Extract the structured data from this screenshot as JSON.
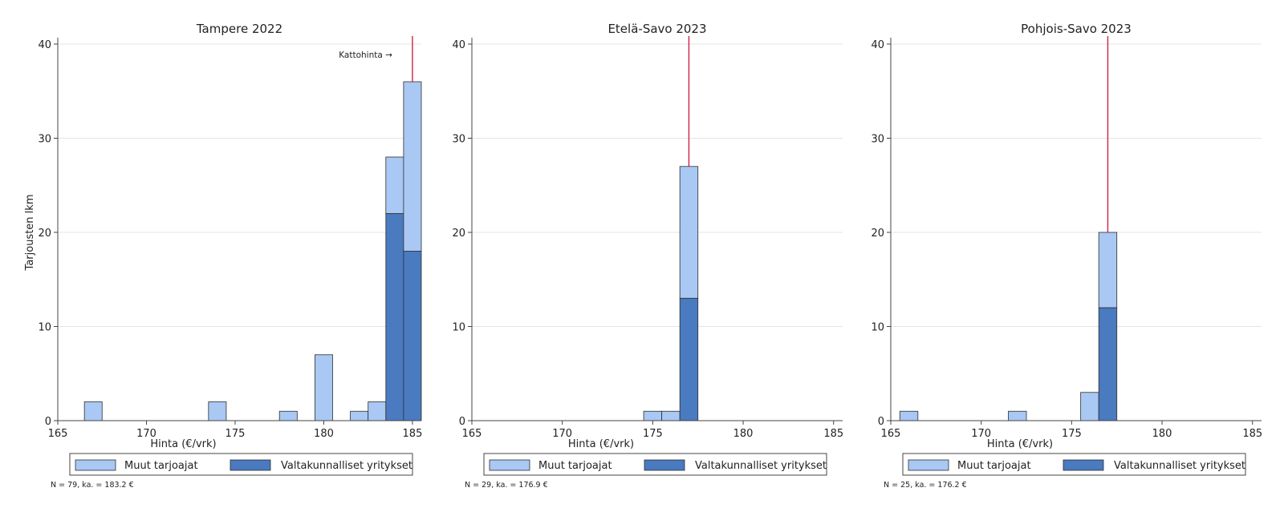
{
  "colors": {
    "muut": "#a9c8f3",
    "valtakunnalliset": "#4a7abf",
    "bar_stroke": "#2e2e2e",
    "ceiling_line": "#d0204a",
    "grid": "#e4e4e4",
    "axis": "#444444"
  },
  "legend_labels": {
    "muut": "Muut tarjoajat",
    "valtakunnalliset": "Valtakunnalliset yritykset"
  },
  "chart_data": [
    {
      "type": "bar",
      "stacked": true,
      "title": "Tampere 2022",
      "xlabel": "Hinta (€/vrk)",
      "ylabel": "Tarjousten lkm",
      "xlim": [
        165,
        185.5
      ],
      "ylim": [
        0,
        40
      ],
      "xticks": [
        "165",
        "170",
        "175",
        "180",
        "185"
      ],
      "yticks": [
        "0",
        "10",
        "20",
        "30",
        "40"
      ],
      "grid": true,
      "bin_width": 1,
      "ceiling_price": 185,
      "annotation": "Kattohinta →",
      "note": "N = 79, ka. = 183.2 €",
      "legend": "bottom",
      "bins": [
        {
          "x": 167,
          "muut": 2,
          "valtakunnalliset": 0
        },
        {
          "x": 174,
          "muut": 2,
          "valtakunnalliset": 0
        },
        {
          "x": 178,
          "muut": 1,
          "valtakunnalliset": 0
        },
        {
          "x": 180,
          "muut": 7,
          "valtakunnalliset": 0
        },
        {
          "x": 182,
          "muut": 1,
          "valtakunnalliset": 0
        },
        {
          "x": 183,
          "muut": 2,
          "valtakunnalliset": 0
        },
        {
          "x": 184,
          "muut": 6,
          "valtakunnalliset": 22
        },
        {
          "x": 185,
          "muut": 18,
          "valtakunnalliset": 18
        }
      ]
    },
    {
      "type": "bar",
      "stacked": true,
      "title": "Etelä-Savo 2023",
      "xlabel": "Hinta (€/vrk)",
      "ylabel": "",
      "xlim": [
        165,
        185.5
      ],
      "ylim": [
        0,
        40
      ],
      "xticks": [
        "165",
        "170",
        "175",
        "180",
        "185"
      ],
      "yticks": [
        "0",
        "10",
        "20",
        "30",
        "40"
      ],
      "grid": true,
      "bin_width": 1,
      "ceiling_price": 177,
      "annotation": "",
      "note": "N = 29, ka. = 176.9 €",
      "legend": "bottom",
      "bins": [
        {
          "x": 175,
          "muut": 1,
          "valtakunnalliset": 0
        },
        {
          "x": 176,
          "muut": 1,
          "valtakunnalliset": 0
        },
        {
          "x": 177,
          "muut": 14,
          "valtakunnalliset": 13
        }
      ]
    },
    {
      "type": "bar",
      "stacked": true,
      "title": "Pohjois-Savo 2023",
      "xlabel": "Hinta (€/vrk)",
      "ylabel": "",
      "xlim": [
        165,
        185.5
      ],
      "ylim": [
        0,
        40
      ],
      "xticks": [
        "165",
        "170",
        "175",
        "180",
        "185"
      ],
      "yticks": [
        "0",
        "10",
        "20",
        "30",
        "40"
      ],
      "grid": true,
      "bin_width": 1,
      "ceiling_price": 177,
      "annotation": "",
      "note": "N = 25, ka. = 176.2 €",
      "legend": "bottom",
      "bins": [
        {
          "x": 166,
          "muut": 1,
          "valtakunnalliset": 0
        },
        {
          "x": 172,
          "muut": 1,
          "valtakunnalliset": 0
        },
        {
          "x": 176,
          "muut": 3,
          "valtakunnalliset": 0
        },
        {
          "x": 177,
          "muut": 8,
          "valtakunnalliset": 12
        }
      ]
    }
  ]
}
